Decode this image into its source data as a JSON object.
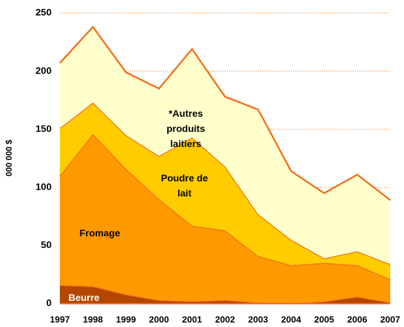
{
  "chart_data": {
    "type": "stacked_area",
    "y_label": "000 000 $",
    "categories": [
      "1997",
      "1998",
      "1999",
      "2000",
      "2001",
      "2002",
      "2003",
      "2004",
      "2005",
      "2006",
      "2007"
    ],
    "series": [
      {
        "name": "Beurre",
        "color": "#b34700",
        "values": [
          16,
          15,
          8,
          3,
          2,
          3,
          1,
          0,
          2,
          6,
          1
        ]
      },
      {
        "name": "Fromage",
        "color": "#ff9900",
        "values": [
          94,
          131,
          108,
          87,
          65,
          60,
          40,
          33,
          33,
          27,
          20
        ]
      },
      {
        "name": "Poudre de lait",
        "color": "#ffcc00",
        "values": [
          41,
          27,
          29,
          37,
          76,
          55,
          36,
          22,
          4,
          12,
          13
        ]
      },
      {
        "name": "*Autres produits laitiers",
        "color": "#ffffcc",
        "values": [
          56,
          65,
          54,
          58,
          76,
          60,
          90,
          59,
          56,
          66,
          55
        ]
      }
    ],
    "line_color": "#f07020",
    "ylim": [
      0,
      250
    ],
    "yticks": [
      0,
      50,
      100,
      150,
      200,
      250
    ],
    "grid": true
  }
}
